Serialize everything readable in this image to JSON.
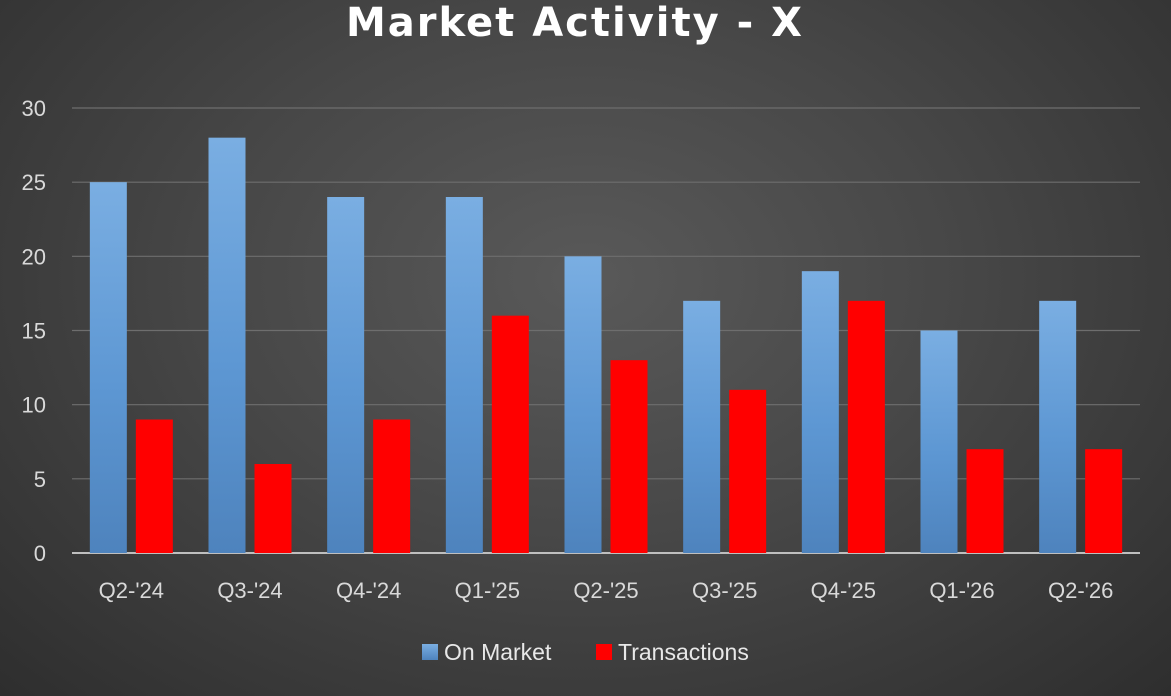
{
  "chart_data": {
    "type": "bar",
    "title": "Market Activity - X",
    "categories": [
      "Q2-'24",
      "Q3-'24",
      "Q4-'24",
      "Q1-'25",
      "Q2-'25",
      "Q3-'25",
      "Q4-'25",
      "Q1-'26",
      "Q2-'26"
    ],
    "series": [
      {
        "name": "On Market",
        "color": "#6fa1d8",
        "values": [
          25,
          28,
          24,
          24,
          20,
          17,
          19,
          15,
          17
        ]
      },
      {
        "name": "Transactions",
        "color": "#ff0000",
        "values": [
          9,
          6,
          9,
          16,
          13,
          11,
          17,
          7,
          7
        ]
      }
    ],
    "ylim": [
      0,
      30
    ],
    "yticks": [
      0,
      5,
      10,
      15,
      20,
      25,
      30
    ],
    "grid": true,
    "legend_position": "bottom"
  }
}
